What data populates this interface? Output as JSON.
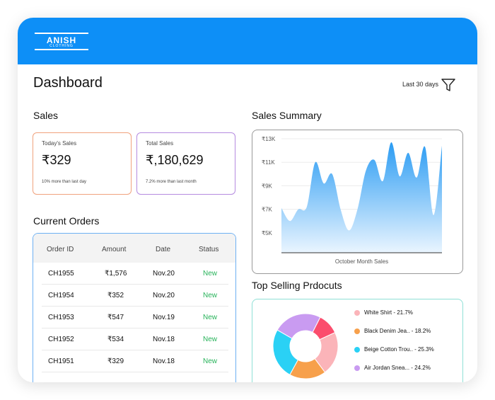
{
  "brand": {
    "name": "ANISH",
    "tagline": "CLOTHING"
  },
  "header": {
    "title": "Dashboard",
    "period": "Last 30 days",
    "filter_icon": "filter-icon"
  },
  "sales": {
    "heading": "Sales",
    "today": {
      "label": "Today's Sales",
      "value": "₹329",
      "note": "10% more than last day"
    },
    "total": {
      "label": "Total Sales",
      "value": "₹,180,629",
      "note": "7.2% more than last month"
    }
  },
  "orders": {
    "heading": "Current Orders",
    "columns": [
      "Order ID",
      "Amount",
      "Date",
      "Status"
    ],
    "rows": [
      {
        "id": "CH1955",
        "amount": "₹1,576",
        "date": "Nov.20",
        "status": "New"
      },
      {
        "id": "CH1954",
        "amount": "₹352",
        "date": "Nov.20",
        "status": "New"
      },
      {
        "id": "CH1953",
        "amount": "₹547",
        "date": "Nov.19",
        "status": "New"
      },
      {
        "id": "CH1952",
        "amount": "₹534",
        "date": "Nov.18",
        "status": "New"
      },
      {
        "id": "CH1951",
        "amount": "₹329",
        "date": "Nov.18",
        "status": "New"
      }
    ],
    "status_color": "#27b35a"
  },
  "summary": {
    "heading": "Sales Summary",
    "chart_data": {
      "type": "area",
      "title": "",
      "xlabel": "October Month Sales",
      "ylabel": "",
      "y_ticks": [
        "₹13K",
        "₹11K",
        "₹9K",
        "₹7K",
        "₹5K"
      ],
      "y_tick_values": [
        13,
        11,
        9,
        7,
        5
      ],
      "ylim": [
        3.3,
        13
      ],
      "grid": true,
      "x": [
        1,
        2,
        3,
        4,
        5,
        6,
        7,
        8,
        9,
        10,
        11,
        12,
        13,
        14,
        15,
        16,
        17,
        18,
        19,
        20
      ],
      "values": [
        7.1,
        6.0,
        7.0,
        7.2,
        11.0,
        9.2,
        10.0,
        7.0,
        5.2,
        7.0,
        10.3,
        11.2,
        9.4,
        12.7,
        9.8,
        11.8,
        9.7,
        12.3,
        6.5,
        12.4
      ],
      "fill_top_color": "#2b9cf3",
      "fill_bottom_color": "#eaf5ff"
    }
  },
  "top_selling": {
    "heading": "Top Selling Prdocuts",
    "chart_data": {
      "type": "pie",
      "donut": true,
      "series": [
        {
          "name": "White Shirt - 21.7%",
          "value": 21.7,
          "color": "#fbb4b9"
        },
        {
          "name": "Black Denim Jea.. - 18.2%",
          "value": 18.2,
          "color": "#f7a04b"
        },
        {
          "name": "Beige Cotton Trou.. - 25.3%",
          "value": 25.3,
          "color": "#2ad1f5"
        },
        {
          "name": "Air Jordan Snea... - 24.2%",
          "value": 24.2,
          "color": "#c99bf1"
        },
        {
          "name": "",
          "value": 10.6,
          "color": "#fb4d6d"
        }
      ]
    }
  }
}
